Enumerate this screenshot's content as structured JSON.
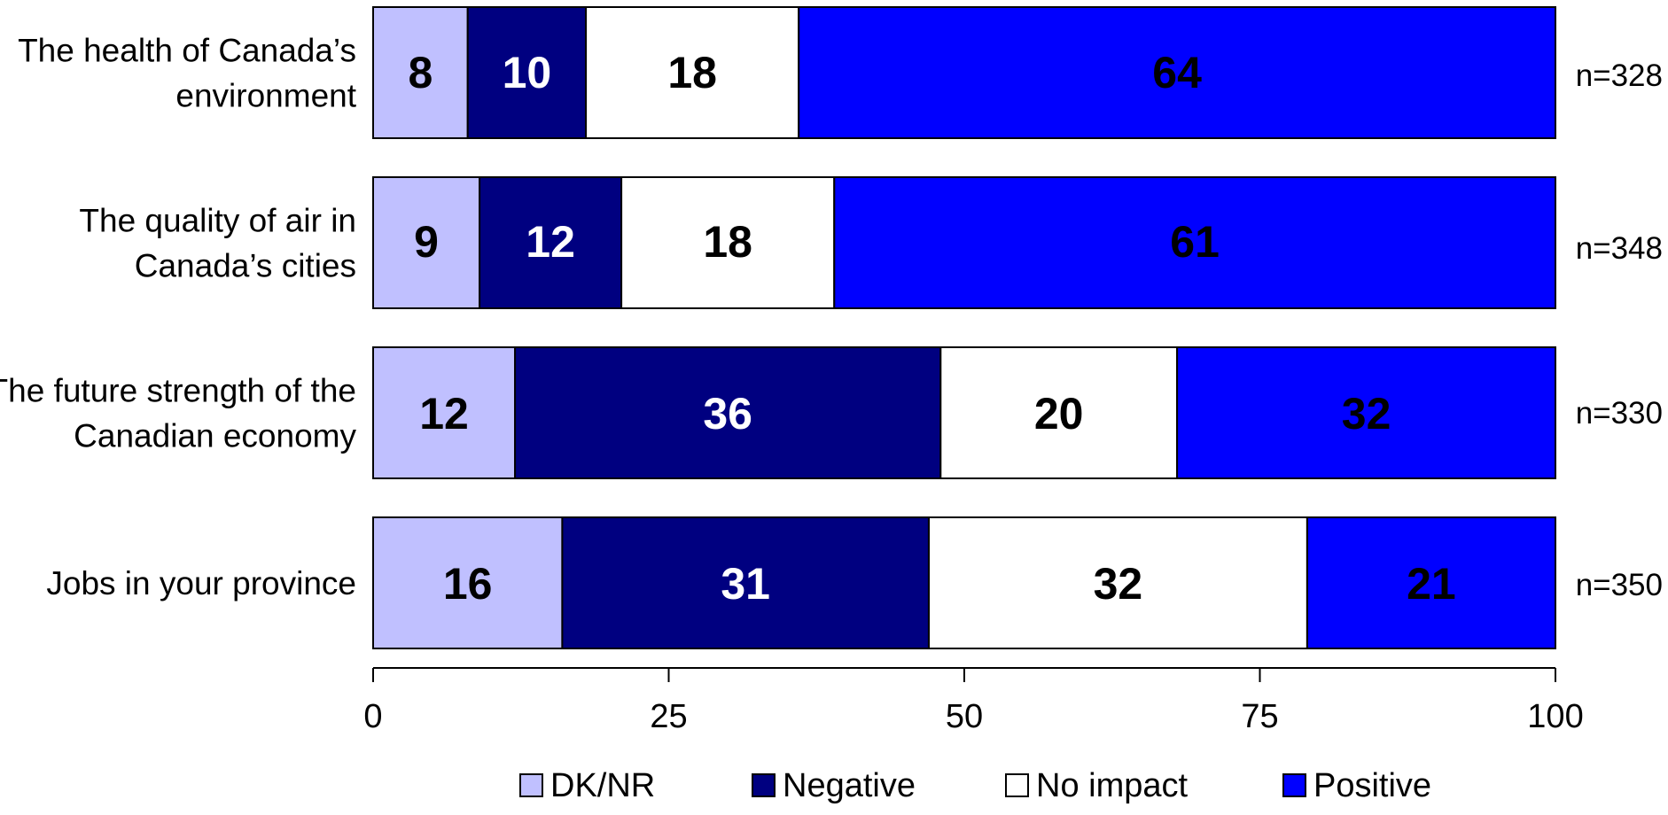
{
  "chart_data": {
    "type": "bar",
    "orientation": "horizontal",
    "stacked": true,
    "title": "",
    "xlabel": "",
    "ylabel": "",
    "xlim": [
      0,
      100
    ],
    "xticks": [
      "0",
      "25",
      "50",
      "75",
      "100"
    ],
    "grid": false,
    "legend_position": "bottom",
    "categories": [
      [
        "The health of Canada’s",
        "environment"
      ],
      [
        "The quality of air in",
        "Canada’s cities"
      ],
      [
        "The future strength of the",
        "Canadian economy"
      ],
      [
        "Jobs in your province"
      ]
    ],
    "sample_sizes": [
      "n=328",
      "n=348",
      "n=330",
      "n=350"
    ],
    "series": [
      {
        "name": "DK/NR",
        "color": "#c0c0ff",
        "label_color": "#000000",
        "values": [
          8,
          9,
          12,
          16
        ]
      },
      {
        "name": "Negative",
        "color": "#000080",
        "label_color": "#ffffff",
        "values": [
          10,
          12,
          36,
          31
        ]
      },
      {
        "name": "No impact",
        "color": "#ffffff",
        "label_color": "#000000",
        "values": [
          18,
          18,
          20,
          32
        ]
      },
      {
        "name": "Positive",
        "color": "#0000ff",
        "label_color": "#000000",
        "values": [
          64,
          61,
          32,
          21
        ]
      }
    ]
  }
}
